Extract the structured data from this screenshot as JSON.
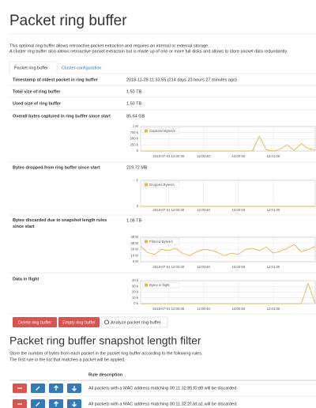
{
  "header": {
    "title": "Packet ring buffer",
    "description": [
      "This optional ring buffer allows retroactive packet extraction and requires an internal or external storage.",
      "A cluster ring buffer also allows retroactive packet extraction but is made up of one or more full disks and allows to store packet data redundantly."
    ]
  },
  "tabs": [
    "Packet ring buffer",
    "Cluster configuration"
  ],
  "info": {
    "rows": [
      [
        "Timestamp of oldest packet in ring buffer",
        "2018-11-28 11:33:55 (214 days 23 hours 27 minutes ago)"
      ],
      [
        "Total size of ring buffer",
        "1.50 TB"
      ],
      [
        "Used size of ring buffer",
        "1.50 TB"
      ],
      [
        "Overall bytes captured in ring buffer since start",
        "85.64 GB"
      ],
      [
        "Bytes dropped from ring buffer since start",
        "219.72 MB"
      ],
      [
        "Bytes discarded due to snapshot length rules since start",
        "1.08 TB"
      ],
      [
        "Data in flight"
      ]
    ]
  },
  "charts": [
    {
      "type": "line",
      "x": [
        22,
        24,
        26,
        28,
        30,
        32,
        34,
        36,
        38,
        40,
        42,
        44,
        46,
        48,
        50,
        52,
        54,
        56,
        58,
        60,
        62,
        64,
        66,
        68,
        70,
        72
      ],
      "xlim": [
        22,
        72
      ],
      "xticks": [
        {
          "value": 30,
          "label": "2018-07-01 12:00:30"
        },
        {
          "value": 40,
          "label": "12:00:40"
        },
        {
          "value": 50,
          "label": "12:00:50"
        },
        {
          "value": 60,
          "label": "12:01:00"
        }
      ],
      "ylim": [
        0,
        1000000
      ],
      "yticks": [
        {
          "value": 0,
          "label": "0"
        },
        {
          "value": 250000,
          "label": "250 k"
        },
        {
          "value": 500000,
          "label": "500 k"
        },
        {
          "value": 750000,
          "label": "750 k"
        },
        {
          "value": 1000000,
          "label": "1 M"
        }
      ],
      "series": [
        {
          "name": "Captured Bytes/s",
          "color": "#e3b64f",
          "values": [
            0,
            0,
            0,
            0,
            0,
            0,
            0,
            0,
            0,
            0,
            0,
            0,
            0,
            0,
            0,
            0,
            0,
            600000,
            50000,
            0,
            80000,
            250000,
            30000,
            300000,
            100000,
            50000
          ]
        }
      ]
    },
    {
      "type": "line",
      "x": [
        22,
        24,
        26,
        28,
        30,
        32,
        34,
        36,
        38,
        40,
        42,
        44,
        46,
        48,
        50,
        52,
        54,
        56,
        58,
        60,
        62,
        64,
        66,
        68,
        70,
        72
      ],
      "xlim": [
        22,
        72
      ],
      "xticks": [
        {
          "value": 30,
          "label": "2018-07-01 12:00:30"
        },
        {
          "value": 40,
          "label": "12:00:40"
        },
        {
          "value": 50,
          "label": "12:00:50"
        },
        {
          "value": 60,
          "label": "12:01:00"
        }
      ],
      "ylim": [
        0,
        1
      ],
      "yticks": [
        0,
        1
      ],
      "series": [
        {
          "name": "Dropped Bytes/s",
          "color": "#e3b64f",
          "values": [
            0,
            0,
            0,
            0,
            0,
            0,
            0,
            0,
            0,
            0,
            0,
            0,
            0,
            0,
            0,
            0,
            0,
            0,
            0,
            0,
            0,
            0,
            0,
            0,
            0,
            0
          ]
        }
      ]
    },
    {
      "type": "line",
      "x": [
        22,
        24,
        26,
        28,
        30,
        32,
        34,
        36,
        38,
        40,
        42,
        44,
        46,
        48,
        50,
        52,
        54,
        56,
        58,
        60,
        62,
        64,
        66,
        68,
        70,
        72
      ],
      "xlim": [
        22,
        72
      ],
      "xticks": [
        {
          "value": 30,
          "label": "2018-07-01 12:00:30"
        },
        {
          "value": 40,
          "label": "12:00:40"
        },
        {
          "value": 50,
          "label": "12:00:50"
        },
        {
          "value": 60,
          "label": "12:01:00"
        }
      ],
      "ylim": [
        0,
        40000000
      ],
      "yticks": [
        {
          "value": 0,
          "label": "0 M"
        },
        {
          "value": 10000000,
          "label": "10 M"
        },
        {
          "value": 20000000,
          "label": "20 M"
        },
        {
          "value": 30000000,
          "label": "30 M"
        },
        {
          "value": 40000000,
          "label": "40 M"
        }
      ],
      "series": [
        {
          "name": "Filtered Bytes/s",
          "color": "#e3b64f",
          "values": [
            25000000,
            15000000,
            12000000,
            20000000,
            18000000,
            22000000,
            14000000,
            10000000,
            16000000,
            20000000,
            19000000,
            15000000,
            10000000,
            14000000,
            12000000,
            20000000,
            22000000,
            18000000,
            24000000,
            14000000,
            17000000,
            22000000,
            28000000,
            16000000,
            20000000,
            25000000
          ]
        }
      ]
    },
    {
      "type": "line",
      "x": [
        22,
        24,
        26,
        28,
        30,
        32,
        34,
        36,
        38,
        40,
        42,
        44,
        46,
        48,
        50,
        52,
        54,
        56,
        58,
        60,
        62,
        64,
        66,
        68,
        70,
        72
      ],
      "xlim": [
        22,
        72
      ],
      "xticks": [
        {
          "value": 30,
          "label": "2018-07-01 12:00:30"
        },
        {
          "value": 40,
          "label": "12:00:40"
        },
        {
          "value": 50,
          "label": "12:00:50"
        },
        {
          "value": 60,
          "label": "12:01:00"
        }
      ],
      "ylim": [
        0,
        40000
      ],
      "yticks": [
        {
          "value": 0,
          "label": "0 k"
        },
        {
          "value": 10000,
          "label": "10 k"
        },
        {
          "value": 20000,
          "label": "20 k"
        },
        {
          "value": 30000,
          "label": "30 k"
        },
        {
          "value": 40000,
          "label": "40 k"
        }
      ],
      "series": [
        {
          "name": "Bytes in flight",
          "color": "#e3b64f",
          "values": [
            0,
            0,
            0,
            0,
            0,
            0,
            0,
            0,
            0,
            0,
            0,
            0,
            0,
            0,
            0,
            0,
            0,
            0,
            0,
            0,
            0,
            0,
            0,
            0,
            35000,
            0
          ]
        }
      ]
    }
  ],
  "buttons": [
    "Delete ring buffer",
    "Empty ring buffer",
    "Analyze packet ring buffer"
  ],
  "filter": {
    "title": "Packet ring buffer snapshot length filter",
    "description": [
      "Store the number of bytes from each packet in the packet ring buffer according to the following rules.",
      "The first rule in the list that matches a packet will be applied."
    ],
    "table": {
      "header": "Rule description",
      "rows": [
        "All packets with a MAC address matching 00:11:32:85:f0:d9 will be discarded.",
        "All packets with a MAC address matching 00:11:32:2f:3d:a1 will be discarded."
      ]
    }
  }
}
